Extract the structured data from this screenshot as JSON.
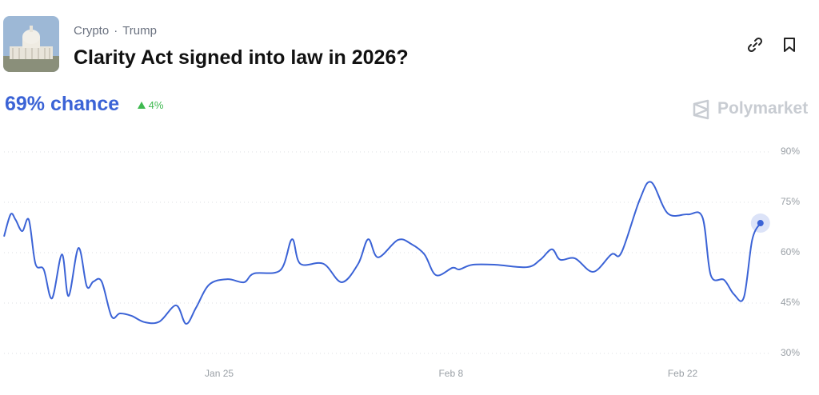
{
  "header": {
    "category": "Crypto",
    "separator": "·",
    "tag": "Trump",
    "title": "Clarity Act signed into law in 2026?",
    "chance": "69% chance",
    "change": "4%",
    "brand": "Polymarket"
  },
  "chart_data": {
    "type": "line",
    "color": "#3b63d6",
    "x": [
      0,
      0.4,
      0.7,
      1.1,
      1.5,
      1.9,
      2.4,
      2.9,
      3.5,
      3.9,
      4.5,
      5.0,
      5.4,
      5.9,
      6.5,
      7.0,
      7.7,
      8.5,
      9.4,
      10.4,
      11.0,
      11.6,
      12.4,
      13.5,
      14.5,
      15.1,
      16.7,
      17.4,
      17.9,
      19.3,
      20.4,
      21.4,
      22.0,
      22.6,
      23.8,
      24.6,
      25.4,
      26.1,
      27.1,
      27.5,
      28.3,
      29.7,
      31.6,
      32.4,
      33.1,
      33.6,
      34.5,
      35.6,
      36.7,
      37.3,
      38.4,
      39.1,
      40.1,
      41.3,
      42.2,
      42.7,
      43.5,
      44.1,
      44.7,
      45.2,
      45.7
    ],
    "values": [
      64.8,
      71.4,
      69.8,
      66.4,
      69.8,
      56.7,
      55,
      46.4,
      59.5,
      47.1,
      61.4,
      50,
      51.4,
      51.4,
      41,
      41.9,
      41.2,
      39.3,
      39.5,
      44.3,
      38.8,
      43.6,
      50.5,
      52.1,
      51.2,
      53.8,
      54.8,
      64,
      56.7,
      56.7,
      51.2,
      56.7,
      64,
      58.6,
      63.8,
      62.6,
      59.5,
      53.3,
      55.5,
      55,
      56.4,
      56.4,
      55.7,
      57.9,
      61,
      57.9,
      58.3,
      54.3,
      59.5,
      60,
      75.7,
      81,
      71.7,
      71.4,
      70.5,
      53.3,
      51.9,
      47.6,
      46.7,
      63.8,
      68.8
    ],
    "xlim": [
      0,
      46
    ],
    "xticks": [
      {
        "value": 13,
        "label": "Jan 25"
      },
      {
        "value": 27,
        "label": "Feb 8"
      },
      {
        "value": 41,
        "label": "Feb 22"
      }
    ],
    "ylim": [
      30,
      90
    ],
    "yticks": [
      {
        "value": 90,
        "label": "90%"
      },
      {
        "value": 75,
        "label": "75%"
      },
      {
        "value": 60,
        "label": "60%"
      },
      {
        "value": 45,
        "label": "45%"
      },
      {
        "value": 30,
        "label": "30%"
      }
    ],
    "grid": true
  }
}
